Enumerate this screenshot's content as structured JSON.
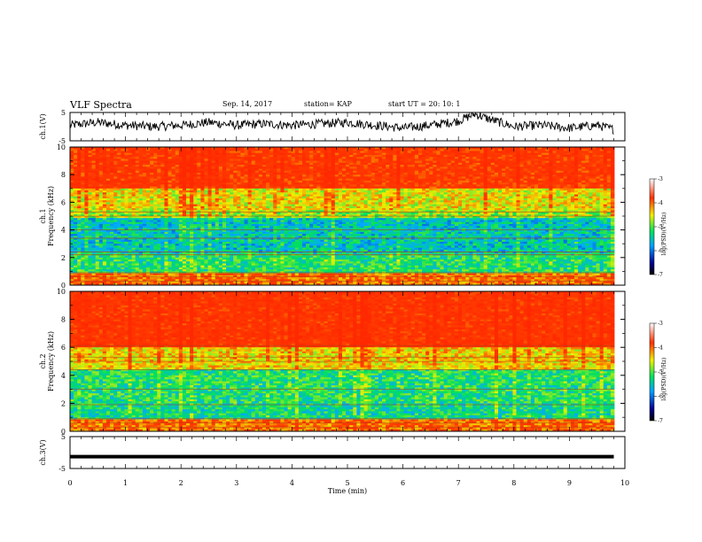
{
  "header": {
    "title": "VLF Spectra",
    "date": "Sep. 14, 2017",
    "station": "station= KAP",
    "start": "start  UT  =   20: 10: 1"
  },
  "colors": {
    "low": "#000080",
    "mid_low": "#00c8ff",
    "mid": "#00e060",
    "mid_high": "#f0f000",
    "high": "#ff2a00"
  },
  "chart_data": [
    {
      "type": "line",
      "ylabel": "ch.1(V)",
      "ylim": [
        -5,
        5
      ],
      "yticks": [
        "5",
        "-5"
      ],
      "xlim": [
        0,
        10
      ],
      "description_series": "waveform amplitude vs time",
      "x": [
        0.0,
        0.5,
        1.0,
        1.5,
        2.0,
        2.5,
        3.0,
        3.5,
        4.0,
        4.5,
        5.0,
        5.5,
        6.0,
        6.5,
        7.0,
        7.3,
        7.5,
        8.0,
        8.5,
        9.0,
        9.5,
        9.8
      ],
      "y": [
        0.5,
        1.5,
        0.5,
        0.0,
        0.5,
        1.5,
        0.5,
        1.0,
        0.5,
        1.0,
        1.5,
        0.5,
        -0.5,
        0.5,
        2.0,
        4.5,
        3.0,
        0.0,
        0.5,
        -0.5,
        0.5,
        -1.0
      ]
    },
    {
      "type": "heatmap",
      "ylabel": "ch.1\nFrequency (kHz)",
      "ylim": [
        0,
        10
      ],
      "yticks": [
        "0",
        "2",
        "4",
        "6",
        "8",
        "10"
      ],
      "xlim": [
        0,
        9.8
      ],
      "colorbar": {
        "label": "log(PSD)(V²/Hz)",
        "range": [
          -7,
          -3
        ],
        "ticks": [
          "-3",
          "-4",
          "-5",
          "-6",
          "-7"
        ]
      },
      "bands": [
        {
          "freq_range": [
            0,
            0.8
          ],
          "level": -4.0
        },
        {
          "freq_range": [
            0.8,
            2.3
          ],
          "level": -5.2
        },
        {
          "freq_range": [
            2.3,
            4.8
          ],
          "level": -5.5
        },
        {
          "freq_range": [
            4.8,
            5.5
          ],
          "level": -4.8
        },
        {
          "freq_range": [
            5.5,
            7.0
          ],
          "level": -4.5
        },
        {
          "freq_range": [
            7.0,
            10
          ],
          "level": -3.6
        }
      ]
    },
    {
      "type": "heatmap",
      "ylabel": "ch.2\nFrequency (kHz)",
      "ylim": [
        0,
        10
      ],
      "yticks": [
        "0",
        "2",
        "4",
        "6",
        "8",
        "10"
      ],
      "xlim": [
        0,
        9.8
      ],
      "colorbar": {
        "label": "log(PSD)(V²/Hz)",
        "range": [
          -7,
          -3
        ],
        "ticks": [
          "-3",
          "-4",
          "-5",
          "-6",
          "-7"
        ]
      },
      "bands": [
        {
          "freq_range": [
            0,
            0.8
          ],
          "level": -4.0
        },
        {
          "freq_range": [
            0.8,
            2.0
          ],
          "level": -5.3
        },
        {
          "freq_range": [
            2.0,
            4.5
          ],
          "level": -5.2
        },
        {
          "freq_range": [
            4.5,
            6.0
          ],
          "level": -4.4
        },
        {
          "freq_range": [
            6.0,
            10
          ],
          "level": -3.5
        }
      ]
    },
    {
      "type": "line",
      "ylabel": "ch.3(V)",
      "ylim": [
        -5,
        5
      ],
      "yticks": [
        "5",
        "-5"
      ],
      "xlim": [
        0,
        10
      ],
      "x": [
        0,
        9.8
      ],
      "y": [
        -1.3,
        -1.3
      ]
    }
  ],
  "xaxis": {
    "label": "Time (min)",
    "ticks": [
      "0",
      "1",
      "2",
      "3",
      "4",
      "5",
      "6",
      "7",
      "8",
      "9",
      "10"
    ]
  }
}
